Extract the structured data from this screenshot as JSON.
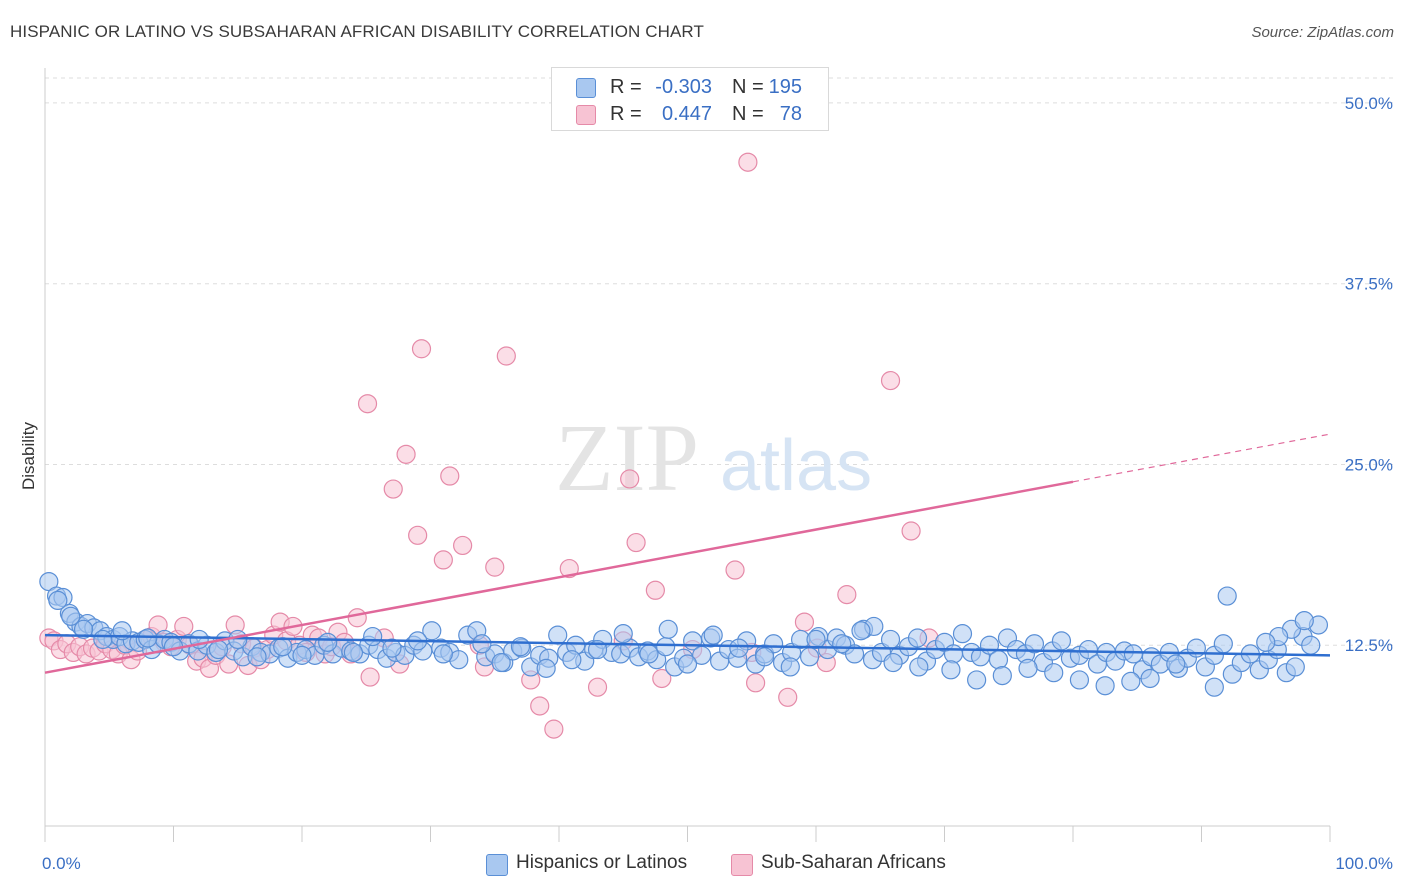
{
  "title": "HISPANIC OR LATINO VS SUBSAHARAN AFRICAN DISABILITY CORRELATION CHART",
  "source": "Source: ZipAtlas.com",
  "watermark": {
    "zip": "ZIP",
    "atlas": "atlas"
  },
  "colors": {
    "blue_fill": "#a9c8f0",
    "blue_stroke": "#5a8fd6",
    "blue_line": "#2f6fd0",
    "pink_fill": "#f7c3d3",
    "pink_stroke": "#e58aa8",
    "pink_line": "#e0689a",
    "axis_text": "#3a6fc4",
    "grid": "#dddddd"
  },
  "legend": {
    "rows": [
      {
        "r_label": "R =",
        "r_value": "-0.303",
        "n_label": "N =",
        "n_value": "195",
        "color": "blue"
      },
      {
        "r_label": "R =",
        "r_value": "0.447",
        "n_label": "N =",
        "n_value": "78",
        "color": "pink"
      }
    ]
  },
  "bottom_legend": [
    {
      "label": "Hispanics or Latinos",
      "color": "blue"
    },
    {
      "label": "Sub-Saharan Africans",
      "color": "pink"
    }
  ],
  "chart_data": {
    "type": "scatter",
    "title": "HISPANIC OR LATINO VS SUBSAHARAN AFRICAN DISABILITY CORRELATION CHART",
    "xlabel": "",
    "ylabel": "Disability",
    "xlim": [
      0,
      100
    ],
    "ylim": [
      0,
      52.0
    ],
    "x_tick_labels": [
      "0.0%",
      "100.0%"
    ],
    "y_ticks": [
      12.5,
      25.0,
      37.5,
      50.0
    ],
    "y_tick_labels": [
      "12.5%",
      "25.0%",
      "37.5%",
      "50.0%"
    ],
    "grid": true,
    "series": [
      {
        "name": "Hispanics or Latinos",
        "color": "blue",
        "trend": {
          "x": [
            0,
            100
          ],
          "y": [
            13.2,
            11.8
          ],
          "dashed_from": null
        },
        "points": [
          [
            0.3,
            16.9
          ],
          [
            0.9,
            15.9
          ],
          [
            1.4,
            15.8
          ],
          [
            1.9,
            14.7
          ],
          [
            2.4,
            14.1
          ],
          [
            2.8,
            13.8
          ],
          [
            3.3,
            14.0
          ],
          [
            3.8,
            13.7
          ],
          [
            4.3,
            13.5
          ],
          [
            4.8,
            13.1
          ],
          [
            5.3,
            12.9
          ],
          [
            5.8,
            13.1
          ],
          [
            6.3,
            12.6
          ],
          [
            6.8,
            12.8
          ],
          [
            7.3,
            12.7
          ],
          [
            7.8,
            12.9
          ],
          [
            8.3,
            12.2
          ],
          [
            8.8,
            12.6
          ],
          [
            9.3,
            12.9
          ],
          [
            9.8,
            12.7
          ],
          [
            10.5,
            12.1
          ],
          [
            11.2,
            12.6
          ],
          [
            11.9,
            12.1
          ],
          [
            12.6,
            12.5
          ],
          [
            13.3,
            12.0
          ],
          [
            14.0,
            12.8
          ],
          [
            14.7,
            12.1
          ],
          [
            15.4,
            11.7
          ],
          [
            16.1,
            12.4
          ],
          [
            16.8,
            12.0
          ],
          [
            17.5,
            11.9
          ],
          [
            18.2,
            12.3
          ],
          [
            18.9,
            11.6
          ],
          [
            19.6,
            12.0
          ],
          [
            20.3,
            12.2
          ],
          [
            21.0,
            11.8
          ],
          [
            21.7,
            12.5
          ],
          [
            22.4,
            11.9
          ],
          [
            23.1,
            12.3
          ],
          [
            23.8,
            12.1
          ],
          [
            24.5,
            11.9
          ],
          [
            25.2,
            12.5
          ],
          [
            25.9,
            12.2
          ],
          [
            26.6,
            11.6
          ],
          [
            27.3,
            12.0
          ],
          [
            28.0,
            11.8
          ],
          [
            28.7,
            12.5
          ],
          [
            29.4,
            12.1
          ],
          [
            30.1,
            13.5
          ],
          [
            30.8,
            12.3
          ],
          [
            31.5,
            12.0
          ],
          [
            32.2,
            11.5
          ],
          [
            32.9,
            13.2
          ],
          [
            33.6,
            13.5
          ],
          [
            34.3,
            11.7
          ],
          [
            35.0,
            11.9
          ],
          [
            35.7,
            11.3
          ],
          [
            36.4,
            12.1
          ],
          [
            37.1,
            12.3
          ],
          [
            37.8,
            11.0
          ],
          [
            38.5,
            11.8
          ],
          [
            39.2,
            11.6
          ],
          [
            39.9,
            13.2
          ],
          [
            40.6,
            12.0
          ],
          [
            41.3,
            12.5
          ],
          [
            42.0,
            11.4
          ],
          [
            42.7,
            12.2
          ],
          [
            43.4,
            12.9
          ],
          [
            44.1,
            12.0
          ],
          [
            44.8,
            11.9
          ],
          [
            45.5,
            12.3
          ],
          [
            46.2,
            11.7
          ],
          [
            46.9,
            12.1
          ],
          [
            47.6,
            11.5
          ],
          [
            48.3,
            12.4
          ],
          [
            49.0,
            11.0
          ],
          [
            49.7,
            11.6
          ],
          [
            50.4,
            12.8
          ],
          [
            51.1,
            11.8
          ],
          [
            51.8,
            13.0
          ],
          [
            52.5,
            11.4
          ],
          [
            53.2,
            12.2
          ],
          [
            53.9,
            11.6
          ],
          [
            54.6,
            12.8
          ],
          [
            55.3,
            11.2
          ],
          [
            56.0,
            11.9
          ],
          [
            56.7,
            12.6
          ],
          [
            57.4,
            11.3
          ],
          [
            58.1,
            12.0
          ],
          [
            58.8,
            12.9
          ],
          [
            59.5,
            11.7
          ],
          [
            60.2,
            13.1
          ],
          [
            60.9,
            12.2
          ],
          [
            61.6,
            13.0
          ],
          [
            62.3,
            12.5
          ],
          [
            63.0,
            11.9
          ],
          [
            63.7,
            13.6
          ],
          [
            64.4,
            11.5
          ],
          [
            65.1,
            12.0
          ],
          [
            65.8,
            12.9
          ],
          [
            66.5,
            11.8
          ],
          [
            67.2,
            12.4
          ],
          [
            67.9,
            13.0
          ],
          [
            68.6,
            11.4
          ],
          [
            69.3,
            12.2
          ],
          [
            70.0,
            12.7
          ],
          [
            70.7,
            11.9
          ],
          [
            71.4,
            13.3
          ],
          [
            72.1,
            12.0
          ],
          [
            72.8,
            11.7
          ],
          [
            73.5,
            12.5
          ],
          [
            74.2,
            11.5
          ],
          [
            74.9,
            13.0
          ],
          [
            75.6,
            12.2
          ],
          [
            76.3,
            11.9
          ],
          [
            77.0,
            12.6
          ],
          [
            77.7,
            11.3
          ],
          [
            78.4,
            12.1
          ],
          [
            79.1,
            12.8
          ],
          [
            79.8,
            11.6
          ],
          [
            80.5,
            11.8
          ],
          [
            81.2,
            12.2
          ],
          [
            81.9,
            11.2
          ],
          [
            82.6,
            12.0
          ],
          [
            83.3,
            11.4
          ],
          [
            84.0,
            12.1
          ],
          [
            84.7,
            11.9
          ],
          [
            85.4,
            10.8
          ],
          [
            86.1,
            11.7
          ],
          [
            86.8,
            11.2
          ],
          [
            87.5,
            12.0
          ],
          [
            88.2,
            10.9
          ],
          [
            88.9,
            11.6
          ],
          [
            89.6,
            12.3
          ],
          [
            90.3,
            11.0
          ],
          [
            91.0,
            11.8
          ],
          [
            91.7,
            12.6
          ],
          [
            92.4,
            10.5
          ],
          [
            93.1,
            11.3
          ],
          [
            93.8,
            11.9
          ],
          [
            94.5,
            10.8
          ],
          [
            95.2,
            11.5
          ],
          [
            95.9,
            12.2
          ],
          [
            96.6,
            10.6
          ],
          [
            97.3,
            11.0
          ],
          [
            97.9,
            13.1
          ],
          [
            98.5,
            12.5
          ],
          [
            99.1,
            13.9
          ],
          [
            92.0,
            15.9
          ],
          [
            91.0,
            9.6
          ],
          [
            88.0,
            11.2
          ],
          [
            86.0,
            10.2
          ],
          [
            84.5,
            10.0
          ],
          [
            82.5,
            9.7
          ],
          [
            80.5,
            10.1
          ],
          [
            78.5,
            10.6
          ],
          [
            76.5,
            10.9
          ],
          [
            74.5,
            10.4
          ],
          [
            72.5,
            10.1
          ],
          [
            70.5,
            10.8
          ],
          [
            68.0,
            11.0
          ],
          [
            66.0,
            11.3
          ],
          [
            64.5,
            13.8
          ],
          [
            63.5,
            13.5
          ],
          [
            62.0,
            12.6
          ],
          [
            60.0,
            12.9
          ],
          [
            58.0,
            11.0
          ],
          [
            56.0,
            11.7
          ],
          [
            54.0,
            12.3
          ],
          [
            52.0,
            13.2
          ],
          [
            50.0,
            11.2
          ],
          [
            48.5,
            13.6
          ],
          [
            47.0,
            11.9
          ],
          [
            45.0,
            13.3
          ],
          [
            43.0,
            12.2
          ],
          [
            41.0,
            11.5
          ],
          [
            39.0,
            10.9
          ],
          [
            37.0,
            12.4
          ],
          [
            35.5,
            11.3
          ],
          [
            34.0,
            12.6
          ],
          [
            31.0,
            11.9
          ],
          [
            29.0,
            12.8
          ],
          [
            27.0,
            12.3
          ],
          [
            25.5,
            13.1
          ],
          [
            24.0,
            12.0
          ],
          [
            22.0,
            12.7
          ],
          [
            20.0,
            11.8
          ],
          [
            18.5,
            12.4
          ],
          [
            16.5,
            11.7
          ],
          [
            15.0,
            12.9
          ],
          [
            13.5,
            12.2
          ],
          [
            12.0,
            12.9
          ],
          [
            10.0,
            12.4
          ],
          [
            8.0,
            13.0
          ],
          [
            6.0,
            13.5
          ],
          [
            4.5,
            12.9
          ],
          [
            3.0,
            13.6
          ],
          [
            2.0,
            14.5
          ],
          [
            1.0,
            15.6
          ],
          [
            97.0,
            13.6
          ],
          [
            98.0,
            14.2
          ],
          [
            96.0,
            13.1
          ],
          [
            95.0,
            12.7
          ]
        ]
      },
      {
        "name": "Sub-Saharan Africans",
        "color": "pink",
        "trend": {
          "x": [
            0,
            100
          ],
          "y": [
            10.6,
            27.1
          ],
          "dashed_from": 80
        },
        "points": [
          [
            0.3,
            13.0
          ],
          [
            0.7,
            12.8
          ],
          [
            1.2,
            12.2
          ],
          [
            1.7,
            12.6
          ],
          [
            2.2,
            12.0
          ],
          [
            2.7,
            12.4
          ],
          [
            3.2,
            11.9
          ],
          [
            3.7,
            12.3
          ],
          [
            4.2,
            12.1
          ],
          [
            4.7,
            12.6
          ],
          [
            5.2,
            12.2
          ],
          [
            5.7,
            11.9
          ],
          [
            6.2,
            12.5
          ],
          [
            6.7,
            11.5
          ],
          [
            7.2,
            12.1
          ],
          [
            7.8,
            12.9
          ],
          [
            8.3,
            13.1
          ],
          [
            8.8,
            13.9
          ],
          [
            9.3,
            12.7
          ],
          [
            9.8,
            12.4
          ],
          [
            10.3,
            12.9
          ],
          [
            10.8,
            13.8
          ],
          [
            11.3,
            12.5
          ],
          [
            11.8,
            11.4
          ],
          [
            12.3,
            11.6
          ],
          [
            12.8,
            10.9
          ],
          [
            13.3,
            11.8
          ],
          [
            13.8,
            12.4
          ],
          [
            14.3,
            11.2
          ],
          [
            14.8,
            13.9
          ],
          [
            15.3,
            12.6
          ],
          [
            15.8,
            11.1
          ],
          [
            16.3,
            12.3
          ],
          [
            16.8,
            11.5
          ],
          [
            17.3,
            12.2
          ],
          [
            17.8,
            13.2
          ],
          [
            18.3,
            14.1
          ],
          [
            18.8,
            12.8
          ],
          [
            19.3,
            13.8
          ],
          [
            19.8,
            12.5
          ],
          [
            20.3,
            12.0
          ],
          [
            20.8,
            13.2
          ],
          [
            21.3,
            13.0
          ],
          [
            21.8,
            11.9
          ],
          [
            22.3,
            12.4
          ],
          [
            22.8,
            13.4
          ],
          [
            23.3,
            12.7
          ],
          [
            23.8,
            11.9
          ],
          [
            24.3,
            14.4
          ],
          [
            25.3,
            10.3
          ],
          [
            26.4,
            13.0
          ],
          [
            27.6,
            11.2
          ],
          [
            29.0,
            20.1
          ],
          [
            31.0,
            18.4
          ],
          [
            32.5,
            19.4
          ],
          [
            33.8,
            12.5
          ],
          [
            34.2,
            11.0
          ],
          [
            35.0,
            17.9
          ],
          [
            37.8,
            10.1
          ],
          [
            38.5,
            8.3
          ],
          [
            39.6,
            6.7
          ],
          [
            40.8,
            17.8
          ],
          [
            43.0,
            9.6
          ],
          [
            45.0,
            12.8
          ],
          [
            46.0,
            19.6
          ],
          [
            47.5,
            16.3
          ],
          [
            48.0,
            10.2
          ],
          [
            50.4,
            12.2
          ],
          [
            53.7,
            17.7
          ],
          [
            55.0,
            12.0
          ],
          [
            55.3,
            9.9
          ],
          [
            59.1,
            14.1
          ],
          [
            60.1,
            12.3
          ],
          [
            57.8,
            8.9
          ],
          [
            60.8,
            11.3
          ],
          [
            62.4,
            16.0
          ],
          [
            67.4,
            20.4
          ],
          [
            68.8,
            13.0
          ]
        ]
      }
    ],
    "outlier_points_pink": [
      [
        54.7,
        45.9
      ],
      [
        29.3,
        33.0
      ],
      [
        35.9,
        32.5
      ],
      [
        25.1,
        29.2
      ],
      [
        28.1,
        25.7
      ],
      [
        27.1,
        23.3
      ],
      [
        65.8,
        30.8
      ],
      [
        31.5,
        24.2
      ],
      [
        45.5,
        24.0
      ]
    ]
  }
}
